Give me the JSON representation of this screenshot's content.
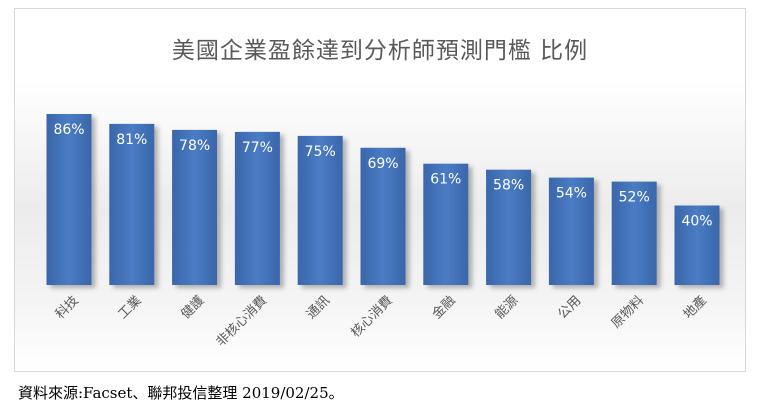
{
  "chart_data": {
    "type": "bar",
    "title": "美國企業盈餘達到分析師預測門檻 比例",
    "categories": [
      "科技",
      "工業",
      "健護",
      "非核心消費",
      "通訊",
      "核心消費",
      "金融",
      "能源",
      "公用",
      "原物料",
      "地產"
    ],
    "values": [
      86,
      81,
      78,
      77,
      75,
      69,
      61,
      58,
      54,
      52,
      40
    ],
    "value_labels": [
      "86%",
      "81%",
      "78%",
      "77%",
      "75%",
      "69%",
      "61%",
      "58%",
      "54%",
      "52%",
      "40%"
    ],
    "unit": "%",
    "xlabel": "",
    "ylabel": "",
    "ylim": [
      0,
      100
    ],
    "grid": false,
    "legend": "none",
    "bar_color": "#3f6fb5",
    "label_color": "#ffffff"
  },
  "source_note": "資料來源:Facset、聯邦投信整理 2019/02/25。"
}
